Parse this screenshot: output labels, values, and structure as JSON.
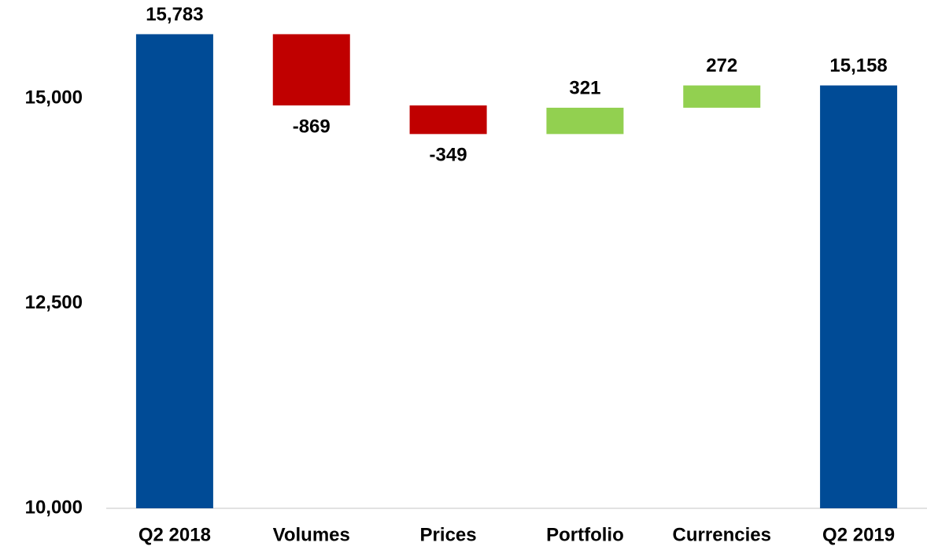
{
  "chart_data": {
    "type": "waterfall",
    "categories": [
      "Q2 2018",
      "Volumes",
      "Prices",
      "Portfolio",
      "Currencies",
      "Q2 2019"
    ],
    "values": [
      15783,
      -869,
      -349,
      321,
      272,
      15158
    ],
    "value_labels": [
      "15,783",
      "-869",
      "-349",
      "321",
      "272",
      "15,158"
    ],
    "totals": [
      true,
      false,
      false,
      false,
      false,
      true
    ],
    "colors": {
      "total": "#004b96",
      "increase": "#92d050",
      "decrease": "#c00000"
    },
    "ylim": [
      10000,
      16200
    ],
    "yticks": [
      {
        "value": 10000,
        "label": "10,000"
      },
      {
        "value": 12500,
        "label": "12,500"
      },
      {
        "value": 15000,
        "label": "15,000"
      }
    ],
    "grid": false
  }
}
